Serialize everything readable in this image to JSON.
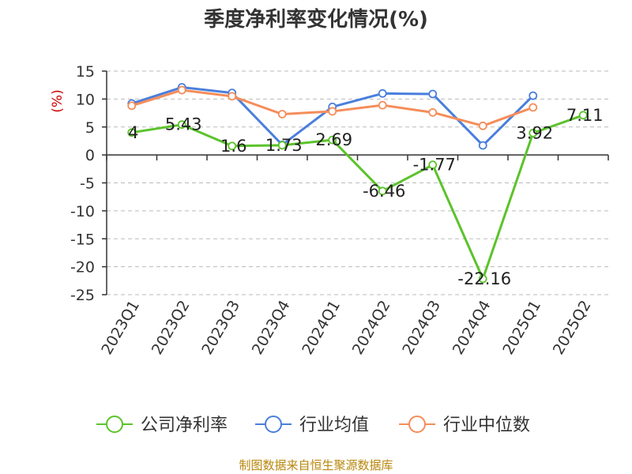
{
  "chart_data": {
    "type": "line",
    "title": "季度净利率变化情况(%)",
    "ylabel": "(%)",
    "categories": [
      "2023Q1",
      "2023Q2",
      "2023Q3",
      "2023Q4",
      "2024Q1",
      "2024Q2",
      "2024Q3",
      "2024Q4",
      "2025Q1",
      "2025Q2"
    ],
    "ylim": [
      -25,
      15
    ],
    "yticks": [
      15,
      10,
      5,
      0,
      -5,
      -10,
      -15,
      -20,
      -25
    ],
    "grid": true,
    "legend_position": "bottom",
    "series": [
      {
        "name": "公司净利率",
        "color": "#5bc32b",
        "values": [
          4,
          5.43,
          1.6,
          1.73,
          2.69,
          -6.46,
          -1.77,
          -22.16,
          3.92,
          7.11
        ],
        "labels": [
          "4",
          "5.43",
          "1.6",
          "1.73",
          "2.69",
          "-6.46",
          "-1.77",
          "-22.16",
          "3.92",
          "7.11"
        ]
      },
      {
        "name": "行业均值",
        "color": "#4a7fdc",
        "values": [
          9.2,
          12.1,
          11.1,
          1.8,
          8.6,
          11.0,
          10.9,
          1.7,
          10.6,
          null
        ]
      },
      {
        "name": "行业中位数",
        "color": "#f58d5a",
        "values": [
          8.8,
          11.6,
          10.5,
          7.3,
          7.8,
          8.9,
          7.6,
          5.2,
          8.5,
          null
        ]
      }
    ]
  },
  "source": "制图数据来自恒生聚源数据库"
}
